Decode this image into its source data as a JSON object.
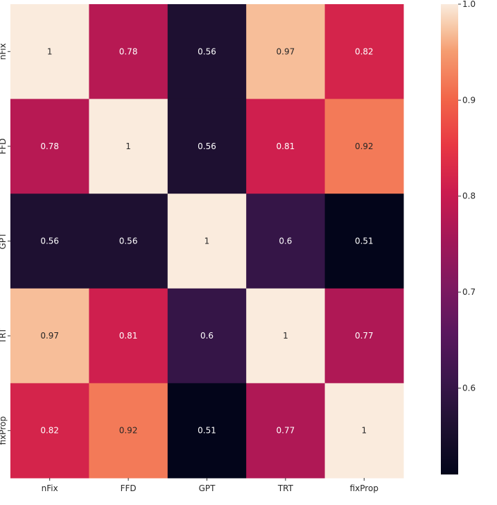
{
  "chart_data": {
    "type": "heatmap",
    "rows": [
      "nFix",
      "FFD",
      "GPT",
      "TRT",
      "fixProp"
    ],
    "columns": [
      "nFix",
      "FFD",
      "GPT",
      "TRT",
      "fixProp"
    ],
    "values": [
      [
        1,
        0.78,
        0.56,
        0.97,
        0.82
      ],
      [
        0.78,
        1,
        0.56,
        0.81,
        0.92
      ],
      [
        0.56,
        0.56,
        1,
        0.6,
        0.51
      ],
      [
        0.97,
        0.81,
        0.6,
        1,
        0.77
      ],
      [
        0.82,
        0.92,
        0.51,
        0.77,
        1
      ]
    ],
    "colorbar": {
      "min": 0.51,
      "max": 1.0,
      "ticks": [
        0.6,
        0.7,
        0.8,
        0.9,
        1.0
      ],
      "tick_labels": [
        "0.6",
        "0.7",
        "0.8",
        "0.9",
        "1.0"
      ],
      "colormap": "rocket"
    },
    "annotations": true,
    "title": "",
    "xlabel": "",
    "ylabel": ""
  }
}
